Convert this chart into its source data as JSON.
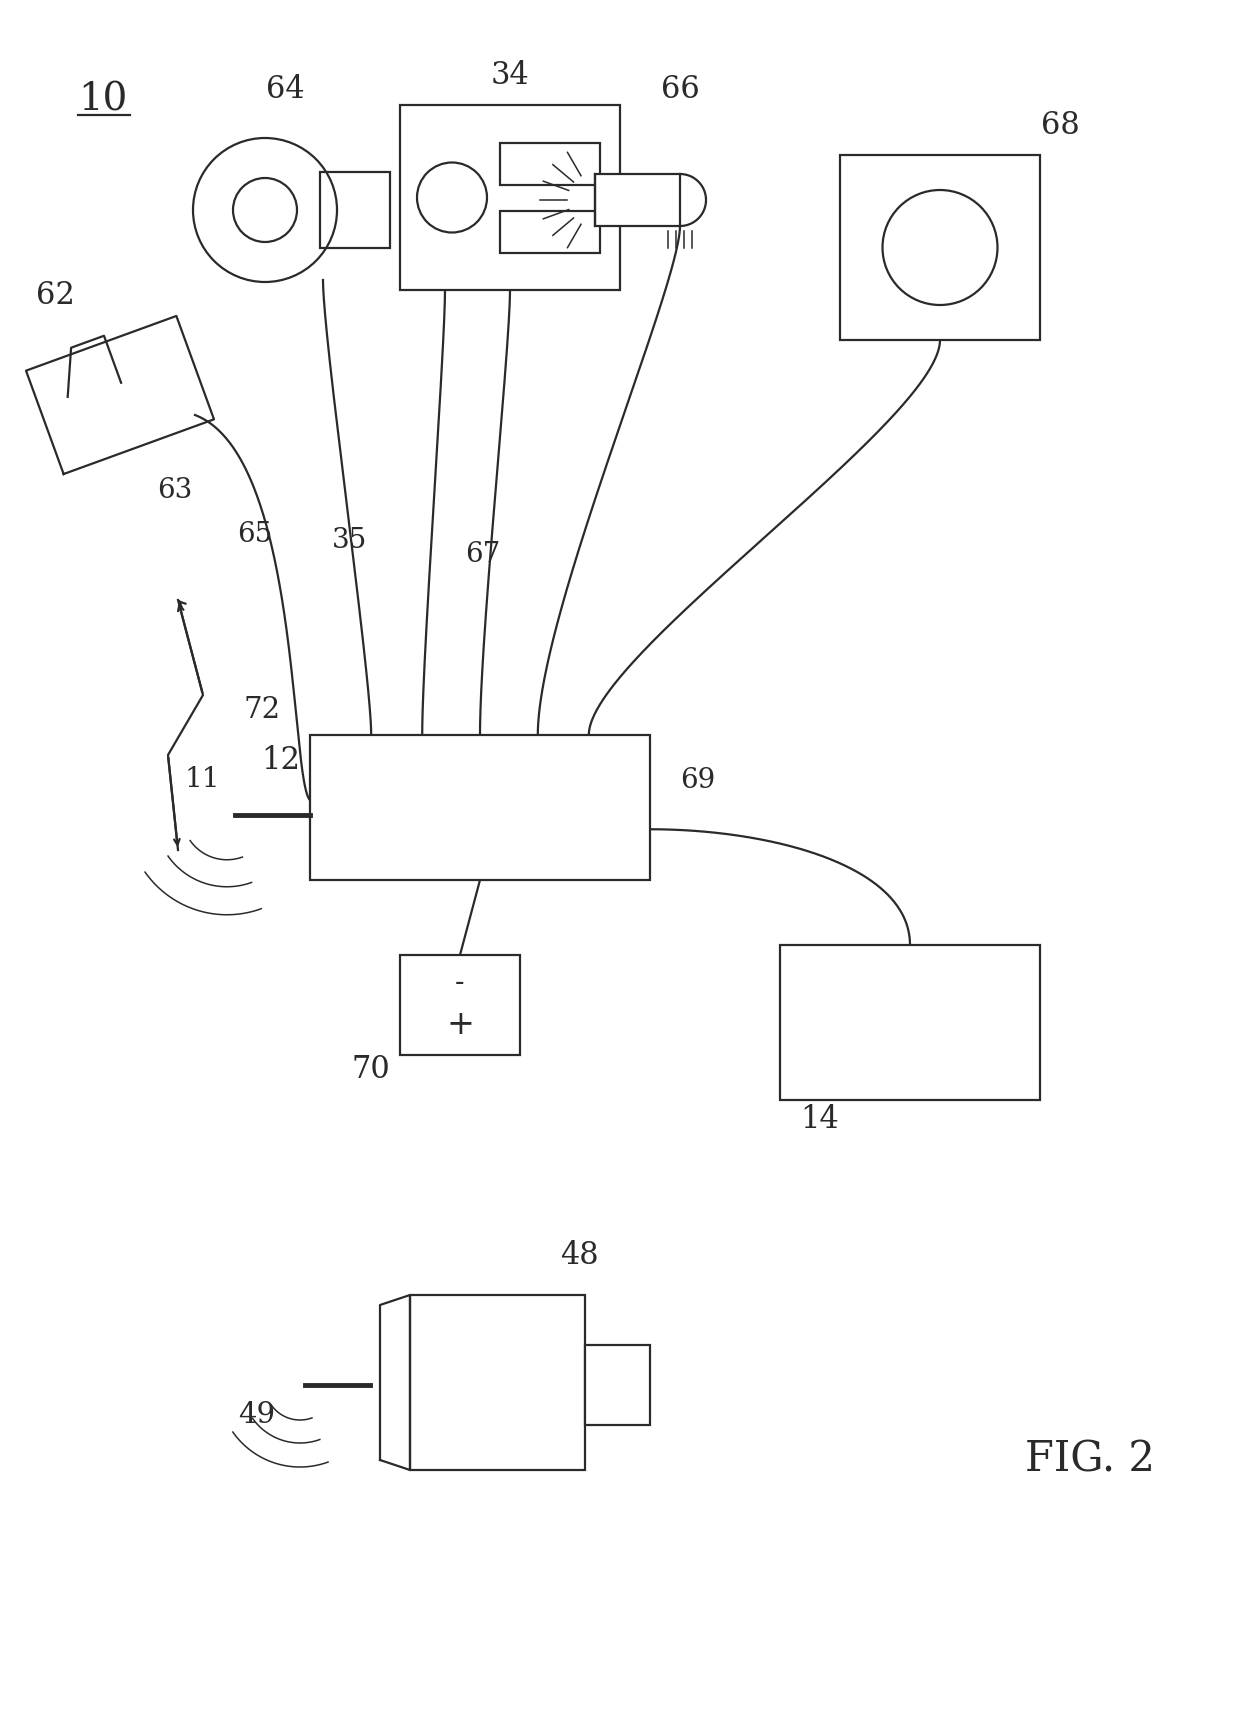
{
  "bg_color": "#ffffff",
  "line_color": "#2a2a2a",
  "fig_label": "FIG. 2",
  "system_number": "10",
  "lw": 1.6,
  "lw_thin": 1.1
}
